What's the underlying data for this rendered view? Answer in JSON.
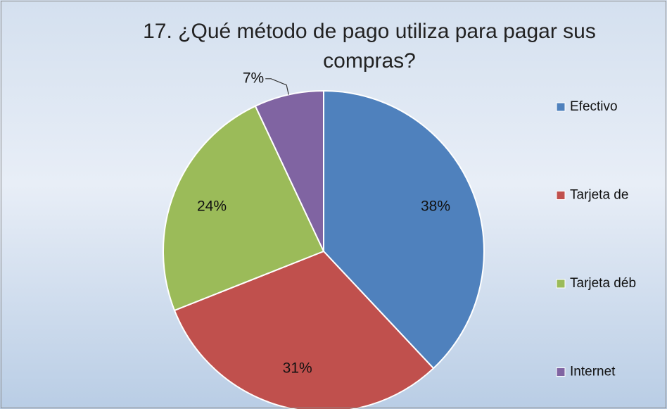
{
  "chart_data": {
    "type": "pie",
    "title": "17. ¿Qué método de pago utiliza para pagar sus compras?",
    "categories": [
      "Efectivo",
      "Tarjeta de",
      "Tarjeta déb",
      "Internet"
    ],
    "values": [
      38,
      31,
      24,
      7
    ],
    "value_labels": [
      "38%",
      "31%",
      "24%",
      "7%"
    ],
    "colors": [
      "#4f81bd",
      "#c0504d",
      "#9bbb59",
      "#8064a2"
    ],
    "legend": "right"
  }
}
